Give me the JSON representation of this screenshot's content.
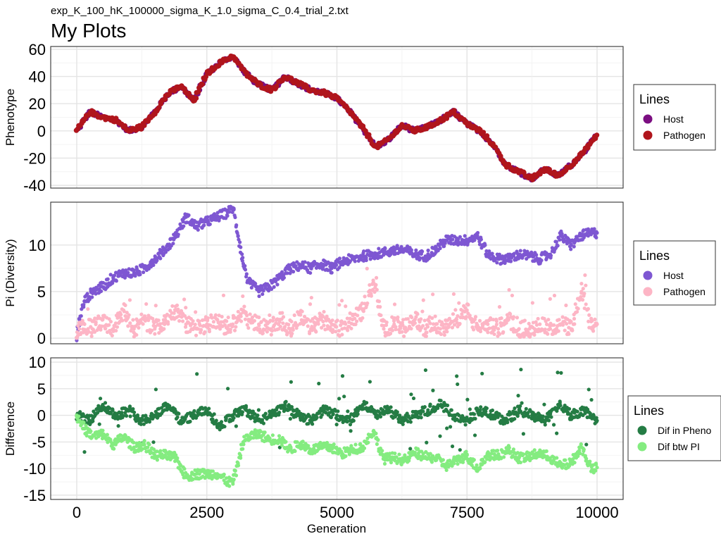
{
  "subtitle": "exp_K_100_hK_100000_sigma_K_1.0_sigma_C_0.4_trial_2.txt",
  "title": "My Plots",
  "xlabel": "Generation",
  "x_ticks": [
    "0",
    "2500",
    "5000",
    "7500",
    "10000"
  ],
  "chart_data": [
    {
      "type": "scatter",
      "ylabel": "Phenotype",
      "xlim": [
        0,
        10000
      ],
      "ylim": [
        -42,
        62
      ],
      "y_ticks": [
        60,
        40,
        20,
        0,
        -20,
        -40
      ],
      "y_tick_labels": [
        "60",
        "40",
        "20",
        "0",
        "-20",
        "-40"
      ],
      "grid": true,
      "legend": {
        "title": "Lines",
        "placement": "right"
      },
      "series": [
        {
          "name": "Host",
          "color": "#7B0E81",
          "x": [
            0,
            250,
            500,
            750,
            1000,
            1250,
            1500,
            1750,
            2000,
            2250,
            2500,
            2750,
            3000,
            3250,
            3500,
            3750,
            4000,
            4250,
            4500,
            4750,
            5000,
            5250,
            5500,
            5750,
            6000,
            6250,
            6500,
            6750,
            7000,
            7250,
            7500,
            7750,
            8000,
            8250,
            8500,
            8750,
            9000,
            9250,
            9500,
            9750,
            10000
          ],
          "y": [
            0,
            14,
            10,
            8,
            0,
            3,
            14,
            27,
            33,
            22,
            42,
            50,
            55,
            42,
            34,
            30,
            40,
            35,
            30,
            28,
            24,
            14,
            2,
            -12,
            -6,
            4,
            0,
            3,
            8,
            14,
            5,
            0,
            -10,
            -25,
            -30,
            -35,
            -28,
            -33,
            -25,
            -15,
            -3
          ]
        },
        {
          "name": "Pathogen",
          "color": "#B0151C",
          "x": [
            0,
            250,
            500,
            750,
            1000,
            1250,
            1500,
            1750,
            2000,
            2250,
            2500,
            2750,
            3000,
            3250,
            3500,
            3750,
            4000,
            4250,
            4500,
            4750,
            5000,
            5250,
            5500,
            5750,
            6000,
            6250,
            6500,
            6750,
            7000,
            7250,
            7500,
            7750,
            8000,
            8250,
            8500,
            8750,
            9000,
            9250,
            9500,
            9750,
            10000
          ],
          "y": [
            0,
            14,
            10,
            8,
            0,
            3,
            14,
            27,
            33,
            22,
            42,
            50,
            55,
            42,
            34,
            30,
            40,
            35,
            30,
            28,
            24,
            14,
            2,
            -12,
            -6,
            4,
            0,
            3,
            8,
            14,
            5,
            0,
            -10,
            -25,
            -30,
            -35,
            -28,
            -33,
            -25,
            -15,
            -3
          ]
        }
      ]
    },
    {
      "type": "scatter",
      "ylabel": "Pi (Diversity)",
      "xlim": [
        0,
        10000
      ],
      "ylim": [
        -0.6,
        14.6
      ],
      "y_ticks": [
        10,
        5,
        0
      ],
      "y_tick_labels": [
        "10",
        "5",
        "0"
      ],
      "grid": true,
      "legend": {
        "title": "Lines",
        "placement": "right"
      },
      "series": [
        {
          "name": "Host",
          "color": "#7E57D2",
          "x": [
            0,
            50,
            150,
            300,
            500,
            700,
            900,
            1100,
            1300,
            1500,
            1700,
            1900,
            2100,
            2300,
            2500,
            2700,
            2900,
            3000,
            3100,
            3200,
            3300,
            3500,
            3700,
            3900,
            4100,
            4300,
            4500,
            4700,
            4900,
            5100,
            5300,
            5500,
            5700,
            5900,
            6100,
            6300,
            6500,
            6700,
            6900,
            7100,
            7300,
            7500,
            7700,
            7900,
            8100,
            8300,
            8500,
            8700,
            8900,
            9100,
            9300,
            9500,
            9700,
            9900,
            10000
          ],
          "y": [
            0,
            2,
            4,
            5,
            5.5,
            6.5,
            7,
            7,
            7.5,
            8.5,
            9.5,
            11,
            13,
            12,
            12.5,
            13,
            13.5,
            14,
            11,
            8,
            6,
            5,
            5.5,
            6.5,
            7.5,
            7.8,
            7.5,
            8,
            7.5,
            8.2,
            8.5,
            8.8,
            9,
            9.2,
            9.4,
            9.5,
            9,
            8.8,
            9.5,
            10.5,
            10.5,
            10.5,
            11,
            9,
            8.5,
            8.5,
            9,
            8.8,
            8.5,
            9,
            11,
            10,
            11,
            11.3,
            11.3
          ]
        },
        {
          "name": "Pathogen",
          "color": "#FDB5C5",
          "x": [
            0,
            50,
            150,
            300,
            500,
            700,
            900,
            1100,
            1300,
            1500,
            1700,
            1900,
            2100,
            2300,
            2500,
            2700,
            2900,
            3000,
            3100,
            3200,
            3300,
            3500,
            3700,
            3900,
            4100,
            4300,
            4500,
            4700,
            4900,
            5100,
            5300,
            5500,
            5700,
            5900,
            6100,
            6300,
            6500,
            6700,
            6900,
            7100,
            7300,
            7500,
            7700,
            7900,
            8100,
            8300,
            8500,
            8700,
            8900,
            9100,
            9300,
            9500,
            9700,
            9900,
            10000
          ],
          "y": [
            0,
            1,
            1.5,
            1,
            2,
            1,
            3,
            1,
            2,
            1,
            2,
            3,
            1.5,
            1,
            1.5,
            2,
            1,
            1.5,
            2,
            3,
            2,
            1.5,
            1,
            2,
            1,
            2.5,
            1,
            2,
            1.5,
            1,
            2,
            3,
            6,
            1,
            1.5,
            1,
            2,
            1,
            1.5,
            1,
            2,
            3,
            1,
            1.5,
            1,
            2,
            1,
            1,
            1.5,
            1,
            1.5,
            1,
            5,
            1,
            1.5
          ]
        }
      ]
    },
    {
      "type": "scatter",
      "ylabel": "Difference",
      "xlim": [
        0,
        10000
      ],
      "ylim": [
        -15.8,
        10.8
      ],
      "y_ticks": [
        10,
        5,
        0,
        -5,
        -10,
        -15
      ],
      "y_tick_labels": [
        "10",
        "5",
        "0",
        "-5",
        "-10",
        "-15"
      ],
      "grid": true,
      "legend": {
        "title": "Lines",
        "placement": "right"
      },
      "series": [
        {
          "name": "Dif in Pheno",
          "color": "#247C44",
          "x": [
            0,
            250,
            500,
            750,
            1000,
            1250,
            1500,
            1750,
            2000,
            2250,
            2500,
            2750,
            3000,
            3250,
            3500,
            3750,
            4000,
            4250,
            4500,
            4750,
            5000,
            5250,
            5500,
            5750,
            6000,
            6250,
            6500,
            6750,
            7000,
            7250,
            7500,
            7750,
            8000,
            8250,
            8500,
            8750,
            9000,
            9250,
            9500,
            9750,
            10000
          ],
          "y": [
            0,
            -1,
            2,
            0,
            1,
            -1,
            0,
            2,
            -1,
            0,
            1,
            -2,
            0,
            1,
            -1,
            0,
            2,
            0,
            -1,
            1,
            0,
            -1,
            2,
            0,
            1,
            -1,
            0,
            1,
            2,
            0,
            -1,
            1,
            0,
            -1,
            1,
            0,
            -1,
            2,
            0,
            1,
            -1
          ]
        },
        {
          "name": "Dif btw PI",
          "color": "#84EC80",
          "x": [
            0,
            50,
            150,
            300,
            500,
            700,
            900,
            1100,
            1300,
            1500,
            1700,
            1900,
            2100,
            2300,
            2500,
            2700,
            2900,
            3000,
            3100,
            3200,
            3300,
            3500,
            3700,
            3900,
            4100,
            4300,
            4500,
            4700,
            4900,
            5100,
            5300,
            5500,
            5700,
            5900,
            6100,
            6300,
            6500,
            6700,
            6900,
            7100,
            7300,
            7500,
            7700,
            7900,
            8100,
            8300,
            8500,
            8700,
            8900,
            9100,
            9300,
            9500,
            9700,
            9900,
            10000
          ],
          "y": [
            0,
            -1,
            -2.5,
            -4,
            -3.5,
            -5.5,
            -4,
            -6,
            -5.5,
            -7.5,
            -7.5,
            -8,
            -11.5,
            -11,
            -11,
            -11,
            -12.5,
            -12.5,
            -9,
            -5,
            -4,
            -3.5,
            -4.5,
            -4.5,
            -6.5,
            -5.3,
            -6.5,
            -6,
            -6,
            -7.2,
            -6.5,
            -5.8,
            -3,
            -8.2,
            -7.9,
            -8.5,
            -7,
            -7.8,
            -8,
            -9.5,
            -8.5,
            -7.5,
            -10,
            -7.5,
            -7.5,
            -6.5,
            -8,
            -7.8,
            -7,
            -8,
            -9.5,
            -9,
            -6,
            -10.3,
            -9.8
          ]
        }
      ]
    }
  ]
}
